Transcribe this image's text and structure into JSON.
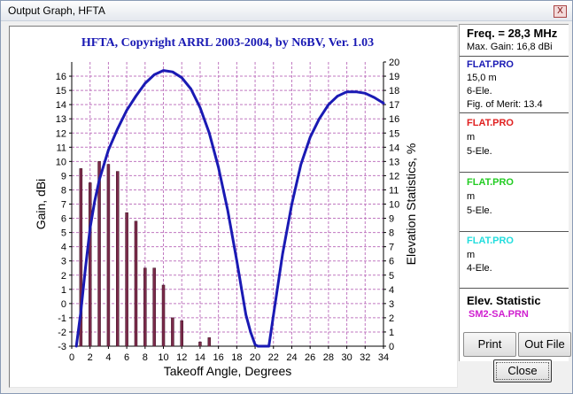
{
  "window": {
    "title": "Output Graph, HFTA",
    "close_glyph": "X"
  },
  "chart_data": {
    "type": "line",
    "title": "HFTA, Copyright ARRL 2003-2004, by N6BV, Ver. 1.03",
    "xlabel": "Takeoff Angle, Degrees",
    "ylabel": "Gain, dBi",
    "y2label": "Elevation Statistics, %",
    "xlim": [
      0,
      34
    ],
    "ylim": [
      -3,
      17
    ],
    "y2lim": [
      0,
      20
    ],
    "x_ticks": [
      0,
      2,
      4,
      6,
      8,
      10,
      12,
      14,
      16,
      18,
      20,
      22,
      24,
      26,
      28,
      30,
      32,
      34
    ],
    "y_ticks": [
      -3,
      -2,
      -1,
      0,
      1,
      2,
      3,
      4,
      5,
      6,
      7,
      8,
      9,
      10,
      11,
      12,
      13,
      14,
      15,
      16
    ],
    "y2_ticks": [
      0,
      1,
      2,
      3,
      4,
      5,
      6,
      7,
      8,
      9,
      10,
      11,
      12,
      13,
      14,
      15,
      16,
      17,
      18,
      19,
      20
    ],
    "grid": true,
    "series": [
      {
        "name": "FLAT.PRO",
        "color": "#1a1ab4",
        "x": [
          0.5,
          1,
          1.5,
          2,
          2.5,
          3,
          4,
          5,
          6,
          7,
          8,
          9,
          10,
          11,
          12,
          13,
          14,
          15,
          16,
          17,
          18,
          19,
          19.5,
          20,
          20.3,
          21.5,
          22,
          23,
          24,
          25,
          26,
          27,
          28,
          29,
          30,
          31,
          32,
          33,
          34
        ],
        "values": [
          -3,
          -0.5,
          2.5,
          5.3,
          7.2,
          8.7,
          10.8,
          12.3,
          13.6,
          14.6,
          15.5,
          16.1,
          16.4,
          16.3,
          15.9,
          15.1,
          13.8,
          12.0,
          9.6,
          6.6,
          3.0,
          -0.8,
          -2.0,
          -2.9,
          -3.0,
          -3.0,
          -0.8,
          3.5,
          7.0,
          9.8,
          11.7,
          13.0,
          14.0,
          14.6,
          14.9,
          14.9,
          14.8,
          14.5,
          14.1
        ]
      }
    ],
    "bars": {
      "name": "SM2-SA.PRN",
      "color": "#7a2a4a",
      "axis": "y2",
      "x": [
        1,
        2,
        3,
        4,
        5,
        6,
        7,
        8,
        9,
        10,
        11,
        12,
        14,
        15
      ],
      "values": [
        12.5,
        11.5,
        13.0,
        12.8,
        12.3,
        9.4,
        8.8,
        5.5,
        5.5,
        4.3,
        2.0,
        1.8,
        0.3,
        0.6
      ]
    }
  },
  "info": {
    "freq": "Freq. = 28,3 MHz",
    "max_gain": "Max. Gain: 16,8 dBi",
    "antennas": [
      {
        "name": "FLAT.PRO",
        "color": "#1a1ab4",
        "height": "15,0 m",
        "type": "6-Ele.",
        "fom": "Fig. of Merit:  13.4"
      },
      {
        "name": "FLAT.PRO",
        "color": "#e02020",
        "height": " m",
        "type": "5-Ele."
      },
      {
        "name": "FLAT.PRO",
        "color": "#22cc22",
        "height": " m",
        "type": "5-Ele."
      },
      {
        "name": "FLAT.PRO",
        "color": "#22dddd",
        "height": " m",
        "type": "4-Ele."
      }
    ],
    "elev_title": "Elev. Statistic",
    "elev_file": "SM2-SA.PRN"
  },
  "buttons": {
    "print": "Print",
    "out_file": "Out File",
    "close": "Close"
  }
}
